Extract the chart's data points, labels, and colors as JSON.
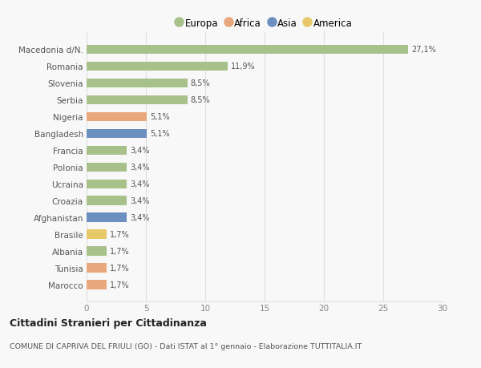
{
  "categories": [
    "Macedonia d/N.",
    "Romania",
    "Slovenia",
    "Serbia",
    "Nigeria",
    "Bangladesh",
    "Francia",
    "Polonia",
    "Ucraina",
    "Croazia",
    "Afghanistan",
    "Brasile",
    "Albania",
    "Tunisia",
    "Marocco"
  ],
  "values": [
    27.1,
    11.9,
    8.5,
    8.5,
    5.1,
    5.1,
    3.4,
    3.4,
    3.4,
    3.4,
    3.4,
    1.7,
    1.7,
    1.7,
    1.7
  ],
  "labels": [
    "27,1%",
    "11,9%",
    "8,5%",
    "8,5%",
    "5,1%",
    "5,1%",
    "3,4%",
    "3,4%",
    "3,4%",
    "3,4%",
    "3,4%",
    "1,7%",
    "1,7%",
    "1,7%",
    "1,7%"
  ],
  "colors": [
    "#a8c08a",
    "#a8c08a",
    "#a8c08a",
    "#a8c08a",
    "#e8a87c",
    "#6b8fbe",
    "#a8c08a",
    "#a8c08a",
    "#a8c08a",
    "#a8c08a",
    "#6b8fbe",
    "#e8c96a",
    "#a8c08a",
    "#e8a87c",
    "#e8a87c"
  ],
  "legend": [
    {
      "label": "Europa",
      "color": "#a8c08a"
    },
    {
      "label": "Africa",
      "color": "#e8a87c"
    },
    {
      "label": "Asia",
      "color": "#6b8fbe"
    },
    {
      "label": "America",
      "color": "#e8c96a"
    }
  ],
  "xlim": [
    0,
    30
  ],
  "xticks": [
    0,
    5,
    10,
    15,
    20,
    25,
    30
  ],
  "title": "Cittadini Stranieri per Cittadinanza",
  "subtitle": "COMUNE DI CAPRIVA DEL FRIULI (GO) - Dati ISTAT al 1° gennaio - Elaborazione TUTTITALIA.IT",
  "bg_color": "#f8f8f8",
  "grid_color": "#e0e0e0",
  "bar_height": 0.55
}
